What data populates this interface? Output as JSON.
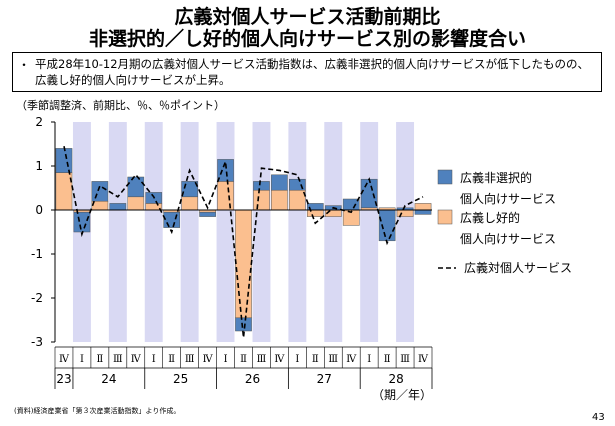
{
  "title_line1": "広義対個人サービス活動前期比",
  "title_line2": "非選択的／し好的個人向けサービス別の影響度合い",
  "summary_bullet": "・",
  "summary": "平成28年10-12月期の広義対個人サービス活動指数は、広義非選択的個人向けサービスが低下したものの、広義し好的個人向けサービスが上昇。",
  "units_label": "（季節調整済、前期比、％、％ポイント）",
  "x_period_label": "（期／年）",
  "source_note": "(資料)経済産業省「第３次産業活動指数」より作成。",
  "page_number": "43",
  "colors": {
    "nonselective": "#4f81bd",
    "discretionary": "#fbbf8f",
    "band": "#d9d9f3"
  },
  "chart_data": {
    "type": "bar",
    "stacked": true,
    "ylim": [
      -3,
      2
    ],
    "yticks": [
      "2",
      "1",
      "0",
      "-1",
      "-2",
      "-3"
    ],
    "categories": [
      "Ⅳ",
      "Ⅰ",
      "Ⅱ",
      "Ⅲ",
      "Ⅳ",
      "Ⅰ",
      "Ⅱ",
      "Ⅲ",
      "Ⅳ",
      "Ⅰ",
      "Ⅱ",
      "Ⅲ",
      "Ⅳ",
      "Ⅰ",
      "Ⅱ",
      "Ⅲ",
      "Ⅳ",
      "Ⅰ",
      "Ⅱ",
      "Ⅲ",
      "Ⅳ"
    ],
    "years": [
      {
        "label": "23",
        "span": 1
      },
      {
        "label": "24",
        "span": 4
      },
      {
        "label": "25",
        "span": 4
      },
      {
        "label": "26",
        "span": 4
      },
      {
        "label": "27",
        "span": 4
      },
      {
        "label": "28",
        "span": 4
      }
    ],
    "series": [
      {
        "name": "広義非選択的\n個人向けサービス",
        "kind": "bar",
        "values": [
          0.55,
          -0.45,
          0.45,
          0.15,
          0.45,
          0.25,
          -0.35,
          0.35,
          -0.1,
          0.5,
          -0.3,
          0.2,
          0.35,
          0.25,
          0.15,
          0.1,
          0.25,
          0.65,
          -0.7,
          0.05,
          -0.1
        ]
      },
      {
        "name": "広義し好的\n個人向けサービス",
        "kind": "bar",
        "values": [
          0.85,
          -0.05,
          0.2,
          0.0,
          0.3,
          0.15,
          -0.05,
          0.3,
          -0.05,
          0.65,
          -2.45,
          0.45,
          0.45,
          0.45,
          -0.15,
          -0.15,
          -0.35,
          0.05,
          0.05,
          -0.15,
          0.15
        ]
      },
      {
        "name": "広義対個人サービス",
        "kind": "line",
        "values": [
          1.45,
          -0.55,
          0.55,
          0.3,
          0.8,
          0.3,
          -0.5,
          0.9,
          0.05,
          1.1,
          -2.9,
          0.95,
          0.9,
          0.8,
          -0.3,
          0.05,
          -0.05,
          0.7,
          -0.75,
          0.1,
          0.3
        ]
      }
    ]
  }
}
